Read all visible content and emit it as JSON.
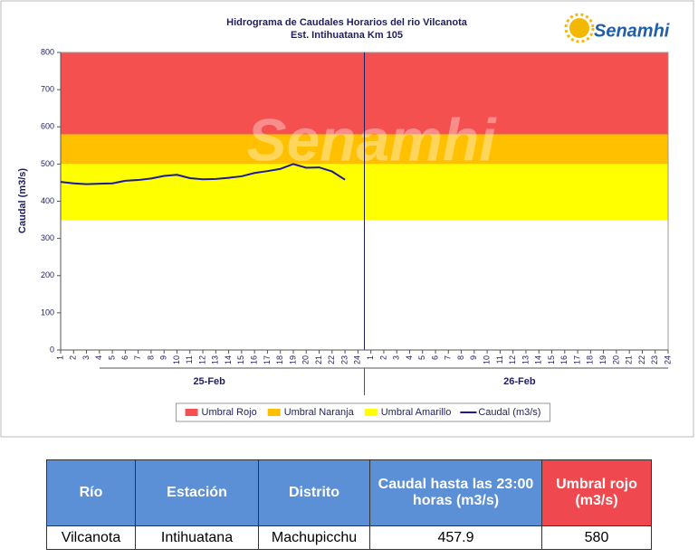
{
  "chart_data": {
    "type": "line",
    "title": "Hidrograma de Caudales Horarios del rio Vilcanota",
    "subtitle": "Est. Intihuatana Km 105",
    "y_label": "Caudal (m3/s)",
    "categories": [
      1,
      2,
      3,
      4,
      5,
      6,
      7,
      8,
      9,
      10,
      11,
      12,
      13,
      14,
      15,
      16,
      17,
      18,
      19,
      20,
      21,
      22,
      23,
      24,
      1,
      2,
      3,
      4,
      5,
      6,
      7,
      8,
      9,
      10,
      11,
      12,
      13,
      14,
      15,
      16,
      17,
      18,
      19,
      20,
      21,
      22,
      23,
      24
    ],
    "groups": [
      "25-Feb",
      "26-Feb"
    ],
    "bands": [
      {
        "name": "Umbral Rojo",
        "color": "#f4504f",
        "from": 580,
        "to": 800
      },
      {
        "name": "Umbral Naranja",
        "color": "#ffc000",
        "from": 500,
        "to": 580
      },
      {
        "name": "Umbral Amarillo",
        "color": "#ffff00",
        "from": 350,
        "to": 500
      }
    ],
    "series": [
      {
        "name": "Caudal (m3/s)",
        "color": "#1a1a9c",
        "values": [
          452,
          448,
          446,
          447,
          448,
          455,
          457,
          461,
          468,
          471,
          462,
          459,
          460,
          463,
          467,
          476,
          481,
          487,
          500,
          490,
          491,
          480,
          457.9,
          null,
          null,
          null,
          null,
          null,
          null,
          null,
          null,
          null,
          null,
          null,
          null,
          null,
          null,
          null,
          null,
          null,
          null,
          null,
          null,
          null,
          null,
          null,
          null,
          null
        ]
      }
    ],
    "ylim": [
      0,
      800
    ],
    "yticks": [
      0,
      100,
      200,
      300,
      400,
      500,
      600,
      700,
      800
    ]
  },
  "logo": {
    "text": "Senamhi"
  },
  "table": {
    "header": [
      "Río",
      "Estación",
      "Distrito",
      "Caudal hasta las 23:00 horas (m3/s)",
      "Umbral rojo (m3/s)"
    ],
    "rows": [
      [
        "Vilcanota",
        "Intihuatana",
        "Machupicchu",
        "457.9",
        "580"
      ]
    ]
  }
}
